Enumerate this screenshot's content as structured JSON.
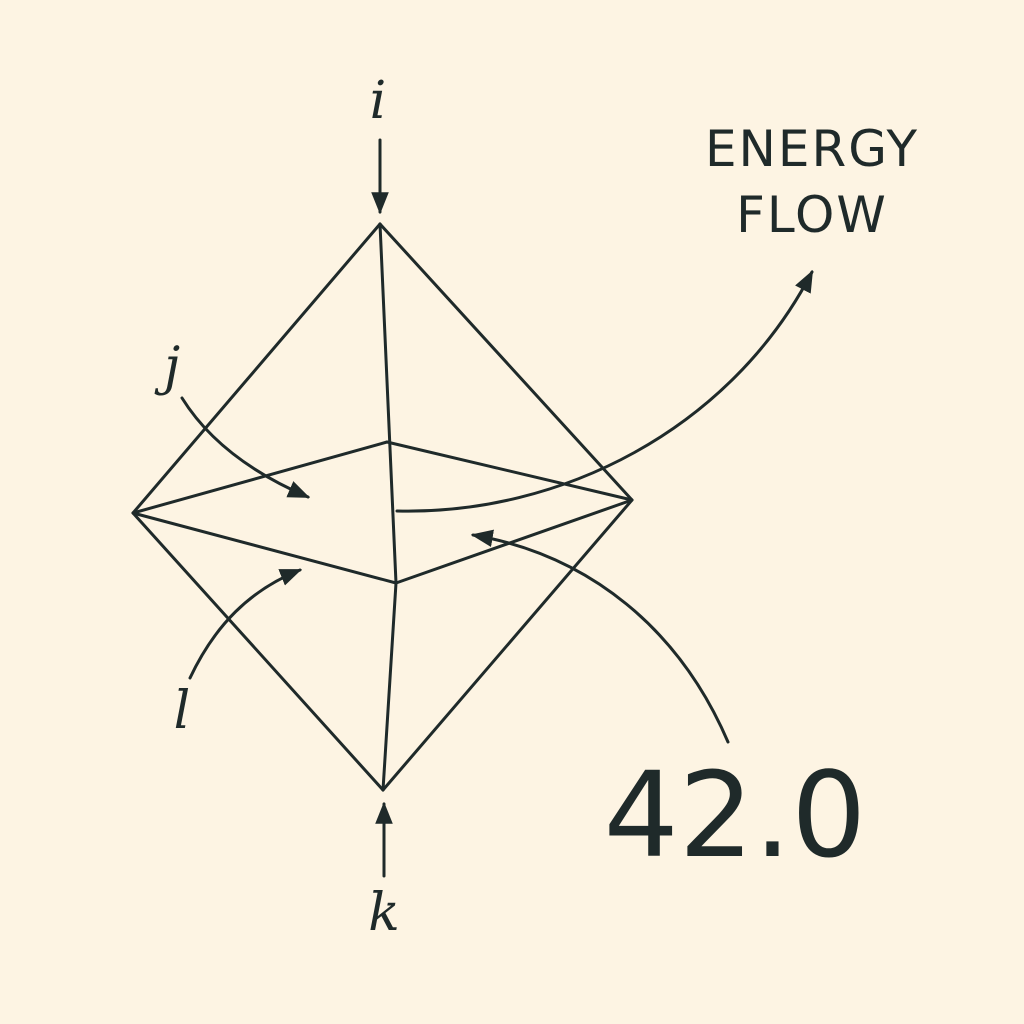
{
  "labels": {
    "i": "i",
    "j": "j",
    "k": "k",
    "l": "l",
    "energy_line1": "ENERGY",
    "energy_line2": "FLOW",
    "value": "42.0"
  },
  "colors": {
    "background": "#fdf4e3",
    "ink": "#1f2a2a"
  }
}
